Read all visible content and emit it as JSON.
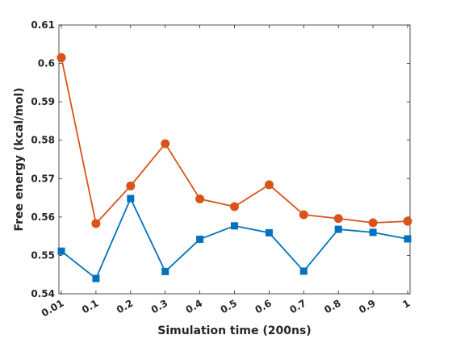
{
  "chart_data": {
    "type": "line",
    "title": "",
    "xlabel": "Simulation time (200ns)",
    "ylabel": "Free energy (kcal/mol)",
    "categories": [
      "0.01",
      "0.1",
      "0.2",
      "0.3",
      "0.4",
      "0.5",
      "0.6",
      "0.7",
      "0.8",
      "0.9",
      "1"
    ],
    "yticks": [
      "0.54",
      "0.55",
      "0.56",
      "0.57",
      "0.58",
      "0.59",
      "0.6",
      "0.61"
    ],
    "ylim": [
      0.54,
      0.61
    ],
    "grid": false,
    "legend": "none",
    "series": [
      {
        "color": "#D95319",
        "marker": "circle",
        "values": [
          0.6015,
          0.5583,
          0.5681,
          0.5791,
          0.5647,
          0.5627,
          0.5684,
          0.5606,
          0.5596,
          0.5585,
          0.5589
        ]
      },
      {
        "color": "#0072BD",
        "marker": "square",
        "values": [
          0.5511,
          0.544,
          0.5648,
          0.5458,
          0.5542,
          0.5577,
          0.5559,
          0.5459,
          0.5568,
          0.556,
          0.5543
        ]
      }
    ]
  }
}
